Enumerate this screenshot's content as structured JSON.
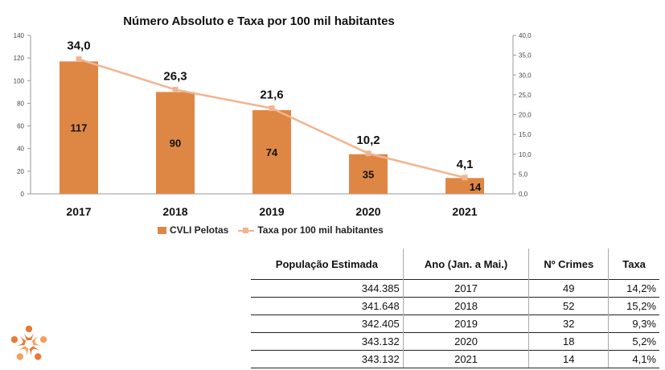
{
  "chart_data": {
    "type": "bar+line",
    "title": "Número Absoluto e Taxa por 100 mil habitantes",
    "categories": [
      "2017",
      "2018",
      "2019",
      "2020",
      "2021"
    ],
    "series": [
      {
        "name": "CVLI Pelotas",
        "type": "bar",
        "axis": "left",
        "values": [
          117,
          90,
          74,
          35,
          14
        ],
        "labels": [
          "117",
          "90",
          "74",
          "35",
          "14"
        ]
      },
      {
        "name": "Taxa por 100 mil habitantes",
        "type": "line",
        "axis": "right",
        "values": [
          34.0,
          26.3,
          21.6,
          10.2,
          4.1
        ],
        "labels": [
          "34,0",
          "26,3",
          "21,6",
          "10,2",
          "4,1"
        ]
      }
    ],
    "y_left": {
      "ylim": [
        0,
        140
      ],
      "ticks": [
        "0",
        "20",
        "40",
        "60",
        "80",
        "100",
        "120",
        "140"
      ]
    },
    "y_right": {
      "ylim": [
        0,
        40
      ],
      "ticks": [
        "0,0",
        "5,0",
        "10,0",
        "15,0",
        "20,0",
        "25,0",
        "30,0",
        "35,0",
        "40,0"
      ]
    },
    "grid": false,
    "legend_position": "bottom",
    "colors": {
      "bar": "#de8745",
      "line": "#f1b48f",
      "axis": "#999999"
    }
  },
  "table": {
    "headers": [
      "População Estimada",
      "Ano (Jan. a Mai.)",
      "Nº Crimes",
      "Taxa"
    ],
    "rows": [
      [
        "344.385",
        "2017",
        "49",
        "14,2%"
      ],
      [
        "341.648",
        "2018",
        "52",
        "15,2%"
      ],
      [
        "342.405",
        "2019",
        "32",
        "9,3%"
      ],
      [
        "343.132",
        "2020",
        "18",
        "5,2%"
      ],
      [
        "343.132",
        "2021",
        "14",
        "4,1%"
      ]
    ]
  },
  "logo": {
    "icon": "orange-people-star-logo",
    "colors": [
      "#e8793a",
      "#f3a25c"
    ]
  }
}
